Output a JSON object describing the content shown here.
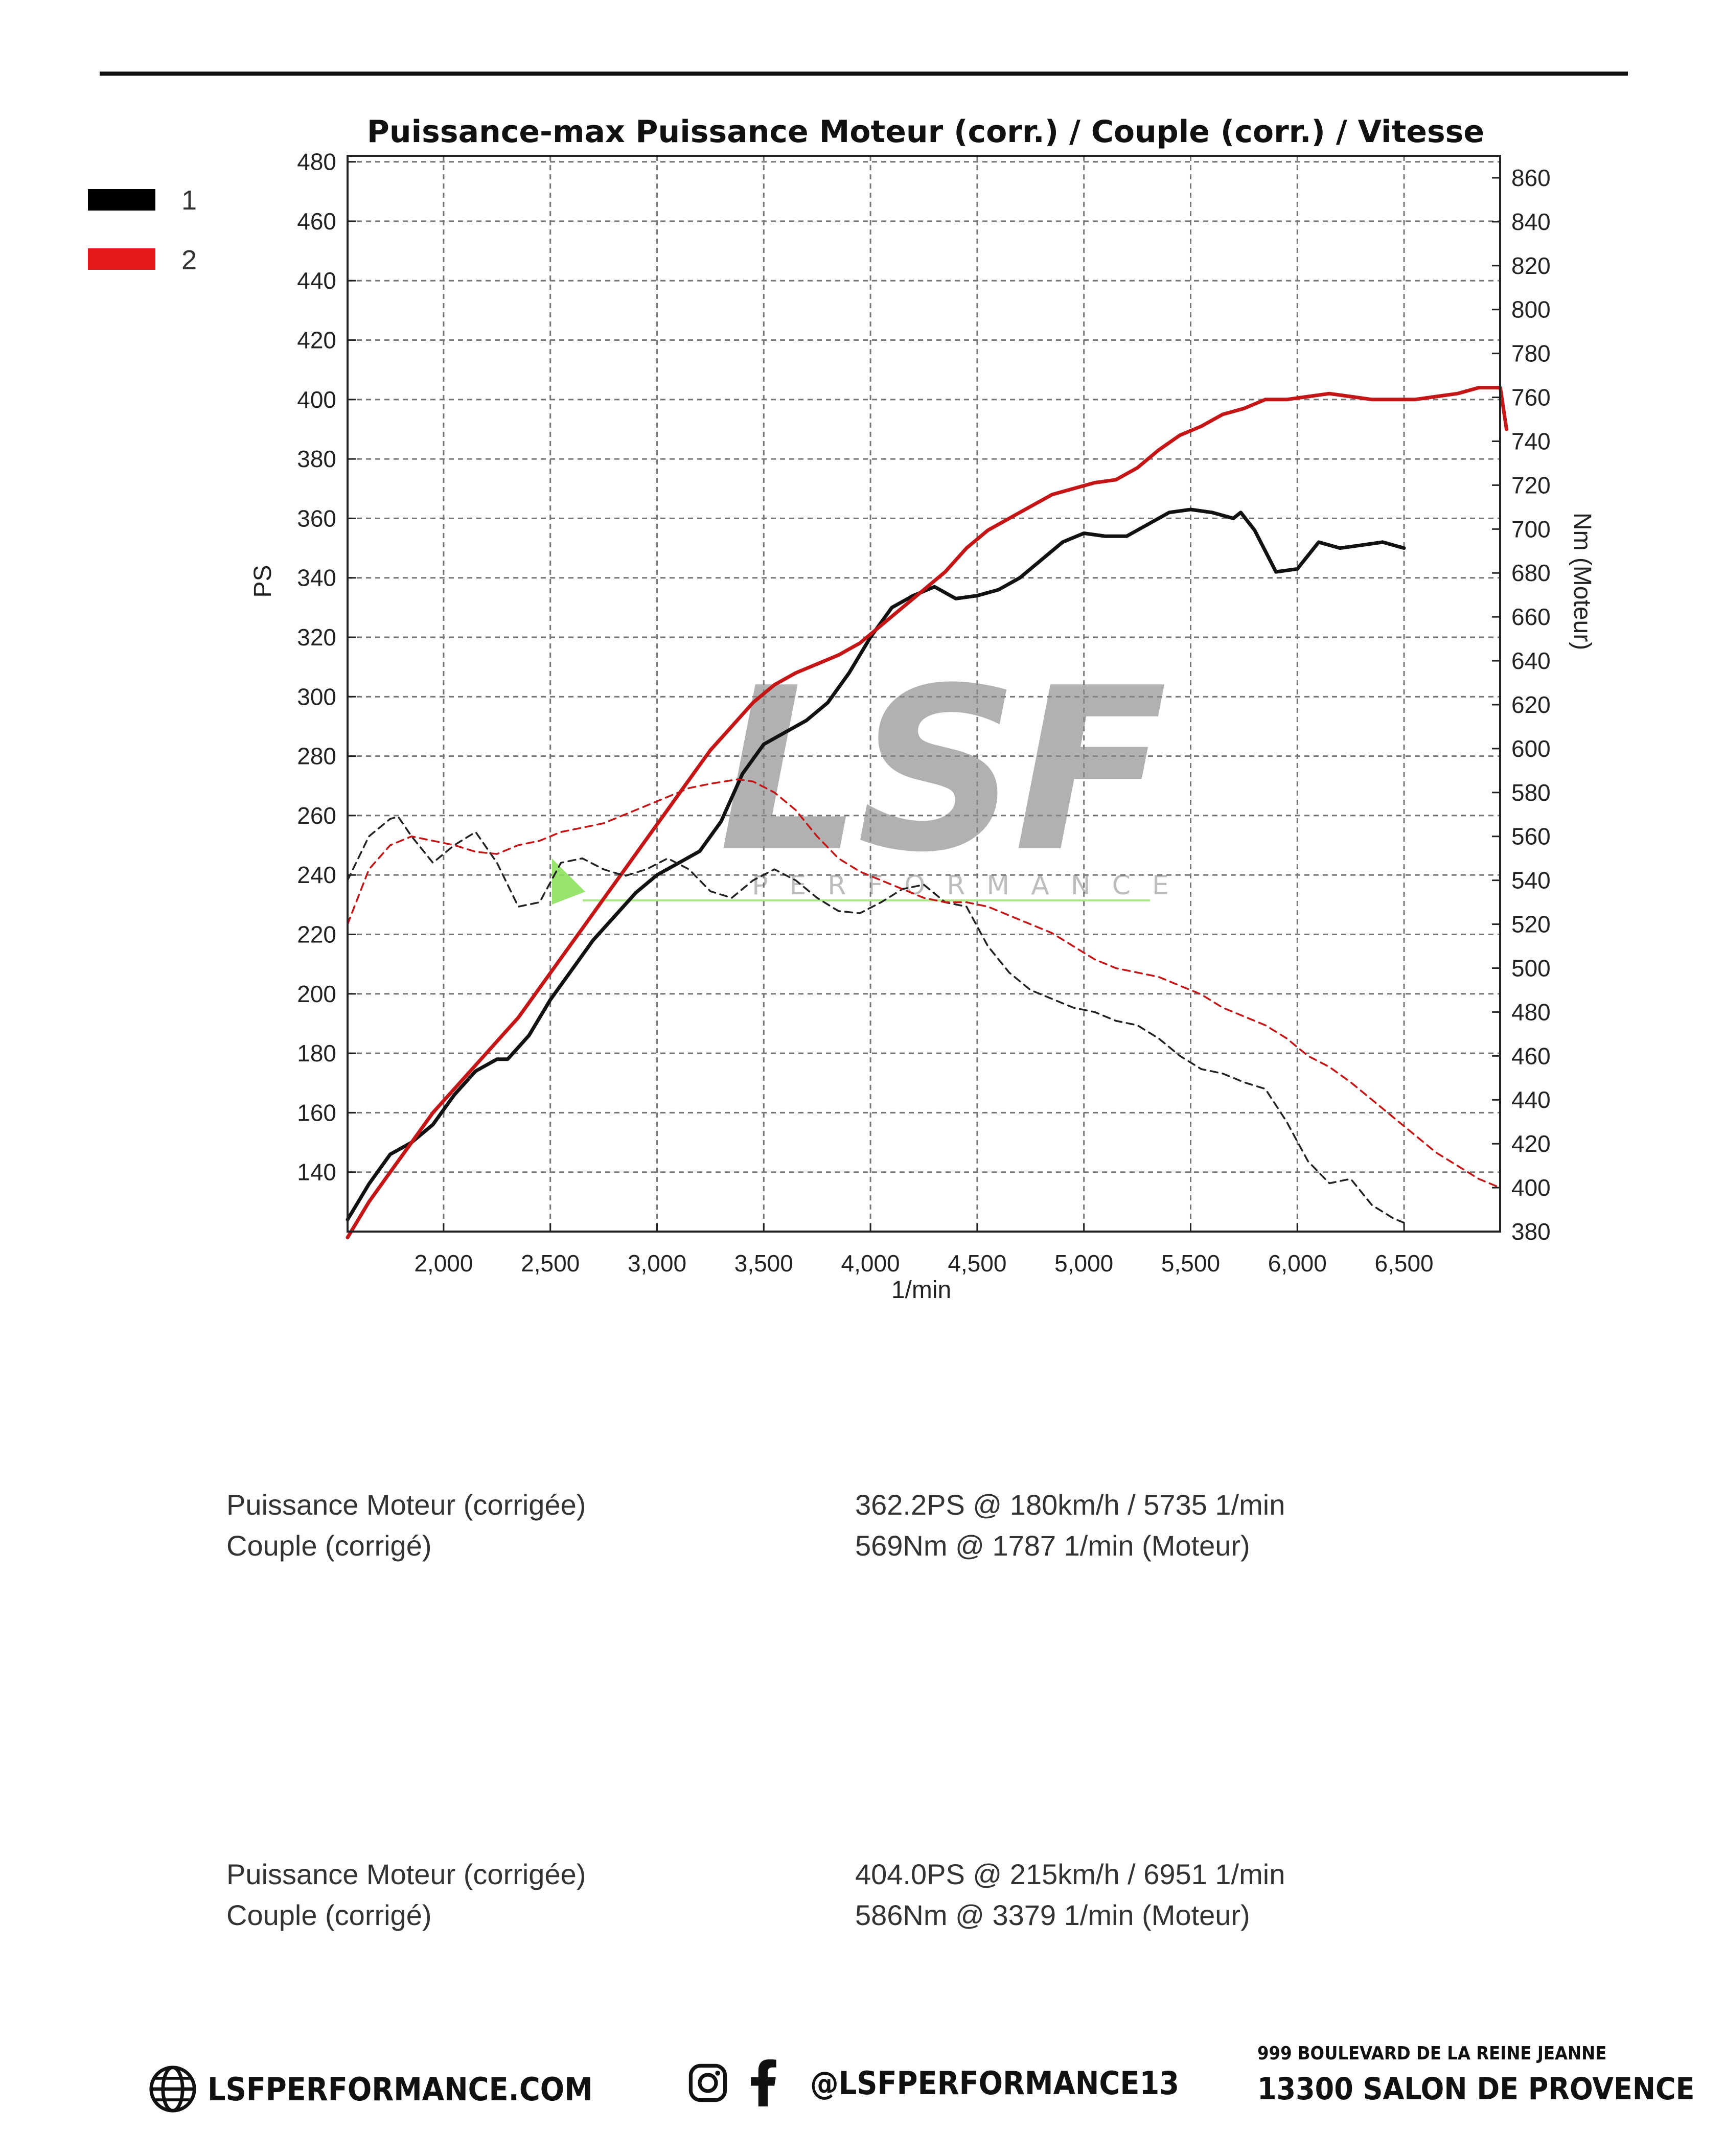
{
  "chart_data": {
    "type": "line",
    "title": "Puissance-max Puissance Moteur (corr.) / Couple (corr.) / Vitesse",
    "xlabel": "1/min",
    "ylabel_left": "PS",
    "ylabel_right": "Nm (Moteur)",
    "xlim": [
      1550,
      6950
    ],
    "ylim_left": [
      120,
      482
    ],
    "ylim_right": [
      380,
      870
    ],
    "x_ticks": [
      2000,
      2500,
      3000,
      3500,
      4000,
      4500,
      5000,
      5500,
      6000,
      6500
    ],
    "x_tick_labels": [
      "2,000",
      "2,500",
      "3,000",
      "3,500",
      "4,000",
      "4,500",
      "5,000",
      "5,500",
      "6,000",
      "6,500"
    ],
    "y_left_ticks": [
      140,
      160,
      180,
      200,
      220,
      240,
      260,
      280,
      300,
      320,
      340,
      360,
      380,
      400,
      420,
      440,
      460,
      480
    ],
    "y_right_ticks": [
      380,
      400,
      420,
      440,
      460,
      480,
      500,
      520,
      540,
      560,
      580,
      600,
      620,
      640,
      660,
      680,
      700,
      720,
      740,
      760,
      780,
      800,
      820,
      840,
      860
    ],
    "grid": true,
    "legend_position": "top-left",
    "legend": [
      {
        "label": "1",
        "color": "#000000"
      },
      {
        "label": "2",
        "color": "#e41a1a"
      }
    ],
    "series": [
      {
        "name": "1",
        "metric": "Puissance",
        "axis": "left",
        "style": "solid",
        "color": "#111111",
        "x": [
          1550,
          1650,
          1750,
          1850,
          1950,
          2050,
          2150,
          2250,
          2300,
          2400,
          2500,
          2600,
          2700,
          2800,
          2900,
          3000,
          3100,
          3200,
          3300,
          3400,
          3500,
          3600,
          3700,
          3800,
          3900,
          4000,
          4100,
          4200,
          4300,
          4400,
          4500,
          4600,
          4700,
          4800,
          4900,
          5000,
          5100,
          5200,
          5300,
          5400,
          5500,
          5600,
          5700,
          5735,
          5800,
          5900,
          6000,
          6100,
          6200,
          6300,
          6400,
          6500
        ],
        "y": [
          124,
          136,
          146,
          150,
          156,
          166,
          174,
          178,
          178,
          186,
          198,
          208,
          218,
          226,
          234,
          240,
          244,
          248,
          258,
          274,
          284,
          288,
          292,
          298,
          308,
          320,
          330,
          334,
          337,
          333,
          334,
          336,
          340,
          346,
          352,
          355,
          354,
          354,
          358,
          362,
          363,
          362,
          360,
          362,
          356,
          342,
          343,
          352,
          350,
          351,
          352,
          350
        ]
      },
      {
        "name": "2",
        "metric": "Puissance",
        "axis": "left",
        "style": "solid",
        "color": "#c41616",
        "x": [
          1550,
          1650,
          1750,
          1850,
          1950,
          2050,
          2150,
          2250,
          2350,
          2450,
          2550,
          2650,
          2750,
          2850,
          2950,
          3050,
          3150,
          3250,
          3350,
          3450,
          3550,
          3650,
          3750,
          3850,
          3950,
          4050,
          4150,
          4250,
          4350,
          4450,
          4550,
          4650,
          4750,
          4850,
          4950,
          5050,
          5150,
          5250,
          5350,
          5450,
          5550,
          5650,
          5750,
          5850,
          5950,
          6050,
          6150,
          6250,
          6350,
          6450,
          6550,
          6650,
          6750,
          6850,
          6951,
          6980
        ],
        "y": [
          118,
          130,
          140,
          150,
          160,
          168,
          176,
          184,
          192,
          202,
          212,
          222,
          232,
          242,
          252,
          262,
          272,
          282,
          290,
          298,
          304,
          308,
          311,
          314,
          318,
          324,
          330,
          336,
          342,
          350,
          356,
          360,
          364,
          368,
          370,
          372,
          373,
          377,
          383,
          388,
          391,
          395,
          397,
          400,
          400,
          401,
          402,
          401,
          400,
          400,
          400,
          401,
          402,
          404,
          404,
          390
        ]
      },
      {
        "name": "1",
        "metric": "Couple",
        "axis": "right",
        "style": "dashed",
        "color": "#222222",
        "x": [
          1550,
          1650,
          1750,
          1787,
          1850,
          1950,
          2050,
          2150,
          2250,
          2350,
          2450,
          2550,
          2650,
          2750,
          2850,
          2950,
          3050,
          3150,
          3250,
          3350,
          3450,
          3550,
          3650,
          3750,
          3850,
          3950,
          4050,
          4150,
          4250,
          4350,
          4450,
          4550,
          4650,
          4750,
          4850,
          4950,
          5050,
          5150,
          5250,
          5350,
          5450,
          5550,
          5650,
          5750,
          5850,
          5950,
          6050,
          6150,
          6250,
          6350,
          6450,
          6500
        ],
        "y": [
          540,
          560,
          568,
          569,
          560,
          548,
          556,
          562,
          548,
          528,
          530,
          548,
          550,
          545,
          542,
          545,
          550,
          545,
          535,
          532,
          540,
          545,
          540,
          532,
          526,
          525,
          530,
          536,
          538,
          530,
          528,
          510,
          498,
          490,
          486,
          482,
          480,
          476,
          474,
          468,
          460,
          454,
          452,
          448,
          445,
          430,
          412,
          402,
          404,
          392,
          386,
          384
        ]
      },
      {
        "name": "2",
        "metric": "Couple",
        "axis": "right",
        "style": "dashed",
        "color": "#c41616",
        "x": [
          1550,
          1650,
          1750,
          1850,
          1950,
          2050,
          2150,
          2250,
          2350,
          2450,
          2550,
          2650,
          2750,
          2850,
          2950,
          3050,
          3150,
          3250,
          3379,
          3450,
          3550,
          3650,
          3750,
          3850,
          3950,
          4050,
          4150,
          4250,
          4350,
          4450,
          4550,
          4650,
          4750,
          4850,
          4950,
          5050,
          5150,
          5250,
          5350,
          5450,
          5550,
          5650,
          5750,
          5850,
          5950,
          6050,
          6150,
          6250,
          6350,
          6450,
          6550,
          6650,
          6750,
          6850,
          6950
        ],
        "y": [
          520,
          545,
          556,
          560,
          558,
          556,
          553,
          552,
          556,
          558,
          562,
          564,
          566,
          570,
          574,
          578,
          582,
          584,
          586,
          585,
          580,
          572,
          560,
          550,
          544,
          540,
          536,
          532,
          530,
          530,
          528,
          524,
          520,
          516,
          510,
          504,
          500,
          498,
          496,
          492,
          488,
          482,
          478,
          474,
          468,
          460,
          455,
          448,
          440,
          432,
          424,
          416,
          410,
          404,
          400
        ]
      }
    ]
  },
  "results": [
    {
      "power_label": "Puissance Moteur (corrigée)",
      "power_value": "362.2PS @ 180km/h / 5735 1/min",
      "torque_label": "Couple (corrigé)",
      "torque_value": "569Nm @ 1787 1/min (Moteur)"
    },
    {
      "power_label": "Puissance Moteur (corrigée)",
      "power_value": "404.0PS @ 215km/h / 6951 1/min",
      "torque_label": "Couple (corrigé)",
      "torque_value": "586Nm @ 3379 1/min (Moteur)"
    }
  ],
  "watermark": {
    "logo_text": "LSF",
    "sub_text": "PERFORMANCE"
  },
  "footer": {
    "website": "LSFPERFORMANCE.COM",
    "website_icon": "globe-icon",
    "social_icons": [
      "instagram-icon",
      "facebook-icon"
    ],
    "social_handle": "@LSFPERFORMANCE13",
    "address_line1": "999 BOULEVARD DE LA REINE JEANNE",
    "address_line2": "13300 SALON DE PROVENCE"
  }
}
